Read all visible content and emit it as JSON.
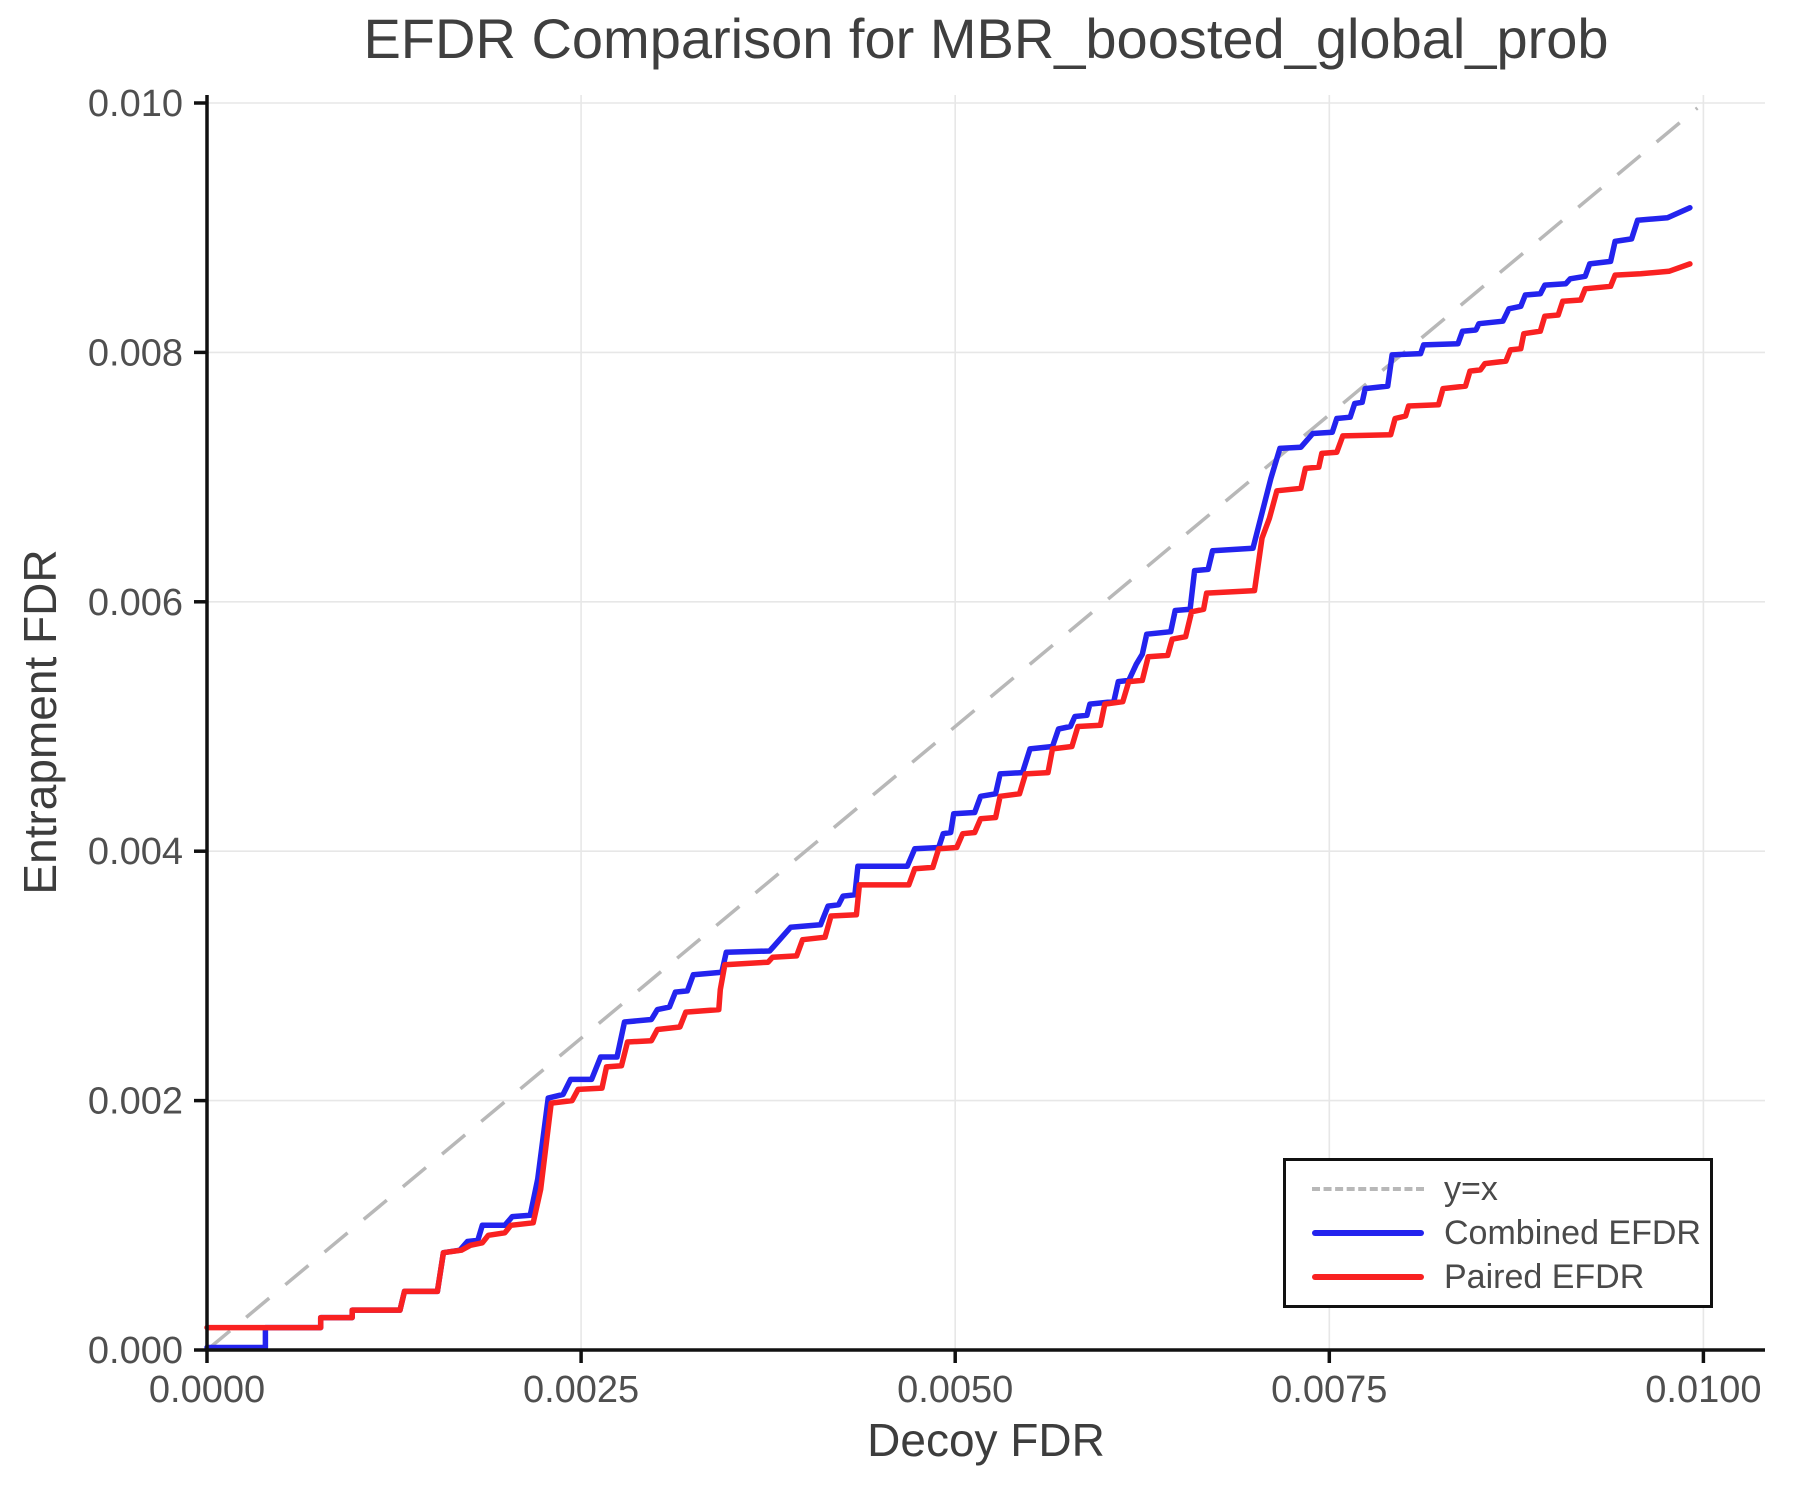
{
  "title": "EFDR Comparison for MBR_boosted_global_prob",
  "colors": {
    "combined": "#2323EE",
    "paired": "#F92121",
    "identity": "#B8B8B8",
    "grid": "#E7E7E7",
    "spine": "#111111",
    "tick_text": "#4f4f4f"
  },
  "legend": {
    "identity_label": "y=x",
    "combined_label": "Combined EFDR",
    "paired_label": "Paired EFDR"
  },
  "chart_data": {
    "type": "line",
    "title": "EFDR Comparison for MBR_boosted_global_prob",
    "xlabel": "Decoy FDR",
    "ylabel": "Entrapment FDR",
    "xlim": [
      0.0,
      0.0104
    ],
    "ylim": [
      0.0,
      0.0101
    ],
    "grid": true,
    "legend_position": "lower right",
    "x_ticks": {
      "values": [
        0.0,
        0.0025,
        0.005,
        0.0075,
        0.01
      ],
      "labels": [
        "0.0000",
        "0.0025",
        "0.0050",
        "0.0075",
        "0.0100"
      ]
    },
    "y_ticks": {
      "values": [
        0.0,
        0.002,
        0.004,
        0.006,
        0.008,
        0.01
      ],
      "labels": [
        "0.000",
        "0.002",
        "0.004",
        "0.006",
        "0.008",
        "0.010"
      ]
    },
    "series": [
      {
        "name": "y=x",
        "style": "dashed",
        "points": [
          [
            0.0,
            0.0
          ],
          [
            0.00996,
            0.00996
          ]
        ]
      },
      {
        "name": "Combined EFDR",
        "style": "solid",
        "points": [
          [
            0.0,
            2e-05
          ],
          [
            0.00039,
            2e-05
          ],
          [
            0.00039,
            0.00018
          ],
          [
            0.00076,
            0.00018
          ],
          [
            0.00076,
            0.00026
          ],
          [
            0.00097,
            0.00026
          ],
          [
            0.00097,
            0.00032
          ],
          [
            0.00129,
            0.00032
          ],
          [
            0.00132,
            0.00047
          ],
          [
            0.00154,
            0.00047
          ],
          [
            0.00158,
            0.00078
          ],
          [
            0.00169,
            0.0008
          ],
          [
            0.00174,
            0.00087
          ],
          [
            0.00181,
            0.00088
          ],
          [
            0.00184,
            0.001
          ],
          [
            0.00199,
            0.001
          ],
          [
            0.00204,
            0.00107
          ],
          [
            0.00216,
            0.00108
          ],
          [
            0.00221,
            0.00137
          ],
          [
            0.00228,
            0.00202
          ],
          [
            0.00238,
            0.00205
          ],
          [
            0.00243,
            0.00217
          ],
          [
            0.00257,
            0.00217
          ],
          [
            0.00263,
            0.00235
          ],
          [
            0.00274,
            0.00235
          ],
          [
            0.00279,
            0.00263
          ],
          [
            0.00297,
            0.00265
          ],
          [
            0.00301,
            0.00273
          ],
          [
            0.00309,
            0.00275
          ],
          [
            0.00313,
            0.00287
          ],
          [
            0.00321,
            0.00288
          ],
          [
            0.00325,
            0.00301
          ],
          [
            0.00344,
            0.00303
          ],
          [
            0.00347,
            0.00319
          ],
          [
            0.00376,
            0.0032
          ],
          [
            0.00379,
            0.00324
          ],
          [
            0.0039,
            0.00339
          ],
          [
            0.0041,
            0.00341
          ],
          [
            0.00415,
            0.00356
          ],
          [
            0.00422,
            0.00357
          ],
          [
            0.00425,
            0.00364
          ],
          [
            0.00433,
            0.00365
          ],
          [
            0.00435,
            0.00388
          ],
          [
            0.00468,
            0.00388
          ],
          [
            0.00473,
            0.00402
          ],
          [
            0.00489,
            0.00403
          ],
          [
            0.00492,
            0.00414
          ],
          [
            0.00497,
            0.00415
          ],
          [
            0.00499,
            0.0043
          ],
          [
            0.00513,
            0.00431
          ],
          [
            0.00517,
            0.00444
          ],
          [
            0.00527,
            0.00446
          ],
          [
            0.0053,
            0.00462
          ],
          [
            0.00545,
            0.00463
          ],
          [
            0.0055,
            0.00482
          ],
          [
            0.00565,
            0.00484
          ],
          [
            0.00569,
            0.00498
          ],
          [
            0.00577,
            0.005
          ],
          [
            0.0058,
            0.00508
          ],
          [
            0.00588,
            0.00509
          ],
          [
            0.0059,
            0.00518
          ],
          [
            0.00606,
            0.0052
          ],
          [
            0.00609,
            0.00536
          ],
          [
            0.00616,
            0.00537
          ],
          [
            0.00621,
            0.0055
          ],
          [
            0.00625,
            0.00558
          ],
          [
            0.00628,
            0.00574
          ],
          [
            0.00644,
            0.00576
          ],
          [
            0.00647,
            0.00593
          ],
          [
            0.00657,
            0.00594
          ],
          [
            0.0066,
            0.00625
          ],
          [
            0.00669,
            0.00626
          ],
          [
            0.00672,
            0.00641
          ],
          [
            0.00699,
            0.00643
          ],
          [
            0.00711,
            0.00699
          ],
          [
            0.00717,
            0.00723
          ],
          [
            0.00731,
            0.00724
          ],
          [
            0.00739,
            0.00735
          ],
          [
            0.00752,
            0.00736
          ],
          [
            0.00755,
            0.00747
          ],
          [
            0.00764,
            0.00748
          ],
          [
            0.00767,
            0.00759
          ],
          [
            0.00772,
            0.0076
          ],
          [
            0.00774,
            0.00771
          ],
          [
            0.00789,
            0.00773
          ],
          [
            0.00792,
            0.00798
          ],
          [
            0.00811,
            0.00799
          ],
          [
            0.00813,
            0.00806
          ],
          [
            0.00836,
            0.00807
          ],
          [
            0.00839,
            0.00817
          ],
          [
            0.00848,
            0.00818
          ],
          [
            0.0085,
            0.00823
          ],
          [
            0.00866,
            0.00825
          ],
          [
            0.0087,
            0.00835
          ],
          [
            0.00878,
            0.00837
          ],
          [
            0.00881,
            0.00846
          ],
          [
            0.00891,
            0.00847
          ],
          [
            0.00894,
            0.00854
          ],
          [
            0.00908,
            0.00855
          ],
          [
            0.00911,
            0.00859
          ],
          [
            0.00921,
            0.00861
          ],
          [
            0.00924,
            0.00871
          ],
          [
            0.00938,
            0.00873
          ],
          [
            0.00941,
            0.00889
          ],
          [
            0.00952,
            0.00891
          ],
          [
            0.00956,
            0.00906
          ],
          [
            0.00976,
            0.00908
          ],
          [
            0.00991,
            0.00916
          ]
        ]
      },
      {
        "name": "Paired EFDR",
        "style": "solid",
        "points": [
          [
            0.0,
            0.00018
          ],
          [
            0.00076,
            0.00018
          ],
          [
            0.00076,
            0.00026
          ],
          [
            0.00097,
            0.00026
          ],
          [
            0.00097,
            0.00032
          ],
          [
            0.00129,
            0.00032
          ],
          [
            0.00132,
            0.00047
          ],
          [
            0.00154,
            0.00047
          ],
          [
            0.00158,
            0.00078
          ],
          [
            0.0017,
            0.0008
          ],
          [
            0.00176,
            0.00084
          ],
          [
            0.00184,
            0.00086
          ],
          [
            0.00188,
            0.00092
          ],
          [
            0.00199,
            0.00094
          ],
          [
            0.00203,
            0.001
          ],
          [
            0.00218,
            0.00102
          ],
          [
            0.00223,
            0.00129
          ],
          [
            0.0023,
            0.00198
          ],
          [
            0.00244,
            0.002
          ],
          [
            0.00248,
            0.00209
          ],
          [
            0.00264,
            0.0021
          ],
          [
            0.00267,
            0.00227
          ],
          [
            0.00277,
            0.00228
          ],
          [
            0.00281,
            0.00247
          ],
          [
            0.00297,
            0.00248
          ],
          [
            0.00301,
            0.00257
          ],
          [
            0.00316,
            0.00259
          ],
          [
            0.0032,
            0.00271
          ],
          [
            0.00342,
            0.00273
          ],
          [
            0.00343,
            0.00289
          ],
          [
            0.00346,
            0.00309
          ],
          [
            0.00375,
            0.00311
          ],
          [
            0.00378,
            0.00315
          ],
          [
            0.00394,
            0.00316
          ],
          [
            0.00398,
            0.00329
          ],
          [
            0.00413,
            0.00331
          ],
          [
            0.00417,
            0.00348
          ],
          [
            0.00434,
            0.00349
          ],
          [
            0.00436,
            0.00373
          ],
          [
            0.00469,
            0.00373
          ],
          [
            0.00473,
            0.00386
          ],
          [
            0.00485,
            0.00387
          ],
          [
            0.00489,
            0.00402
          ],
          [
            0.00501,
            0.00403
          ],
          [
            0.00505,
            0.00414
          ],
          [
            0.00513,
            0.00415
          ],
          [
            0.00517,
            0.00426
          ],
          [
            0.00527,
            0.00427
          ],
          [
            0.0053,
            0.00444
          ],
          [
            0.00543,
            0.00446
          ],
          [
            0.00547,
            0.00462
          ],
          [
            0.00562,
            0.00463
          ],
          [
            0.00565,
            0.00482
          ],
          [
            0.00578,
            0.00484
          ],
          [
            0.00582,
            0.005
          ],
          [
            0.00597,
            0.00501
          ],
          [
            0.006,
            0.00518
          ],
          [
            0.00612,
            0.0052
          ],
          [
            0.00616,
            0.00536
          ],
          [
            0.00625,
            0.00537
          ],
          [
            0.00629,
            0.00556
          ],
          [
            0.00642,
            0.00557
          ],
          [
            0.00645,
            0.0057
          ],
          [
            0.00654,
            0.00572
          ],
          [
            0.00658,
            0.00592
          ],
          [
            0.00666,
            0.00594
          ],
          [
            0.00668,
            0.00607
          ],
          [
            0.007,
            0.00609
          ],
          [
            0.00705,
            0.00651
          ],
          [
            0.0071,
            0.00667
          ],
          [
            0.00715,
            0.00689
          ],
          [
            0.00731,
            0.00691
          ],
          [
            0.00734,
            0.00707
          ],
          [
            0.00743,
            0.00708
          ],
          [
            0.00745,
            0.00719
          ],
          [
            0.00755,
            0.0072
          ],
          [
            0.00759,
            0.00733
          ],
          [
            0.00791,
            0.00734
          ],
          [
            0.00794,
            0.00747
          ],
          [
            0.00801,
            0.00749
          ],
          [
            0.00803,
            0.00757
          ],
          [
            0.00823,
            0.00758
          ],
          [
            0.00826,
            0.00771
          ],
          [
            0.00841,
            0.00773
          ],
          [
            0.00844,
            0.00785
          ],
          [
            0.00851,
            0.00786
          ],
          [
            0.00854,
            0.00791
          ],
          [
            0.00868,
            0.00793
          ],
          [
            0.00871,
            0.00802
          ],
          [
            0.00878,
            0.00803
          ],
          [
            0.0088,
            0.00815
          ],
          [
            0.00891,
            0.00817
          ],
          [
            0.00894,
            0.00829
          ],
          [
            0.00903,
            0.0083
          ],
          [
            0.00906,
            0.00841
          ],
          [
            0.00918,
            0.00842
          ],
          [
            0.00921,
            0.00851
          ],
          [
            0.00938,
            0.00853
          ],
          [
            0.00941,
            0.00862
          ],
          [
            0.00958,
            0.00863
          ],
          [
            0.00977,
            0.00865
          ],
          [
            0.00991,
            0.00871
          ]
        ]
      }
    ]
  }
}
